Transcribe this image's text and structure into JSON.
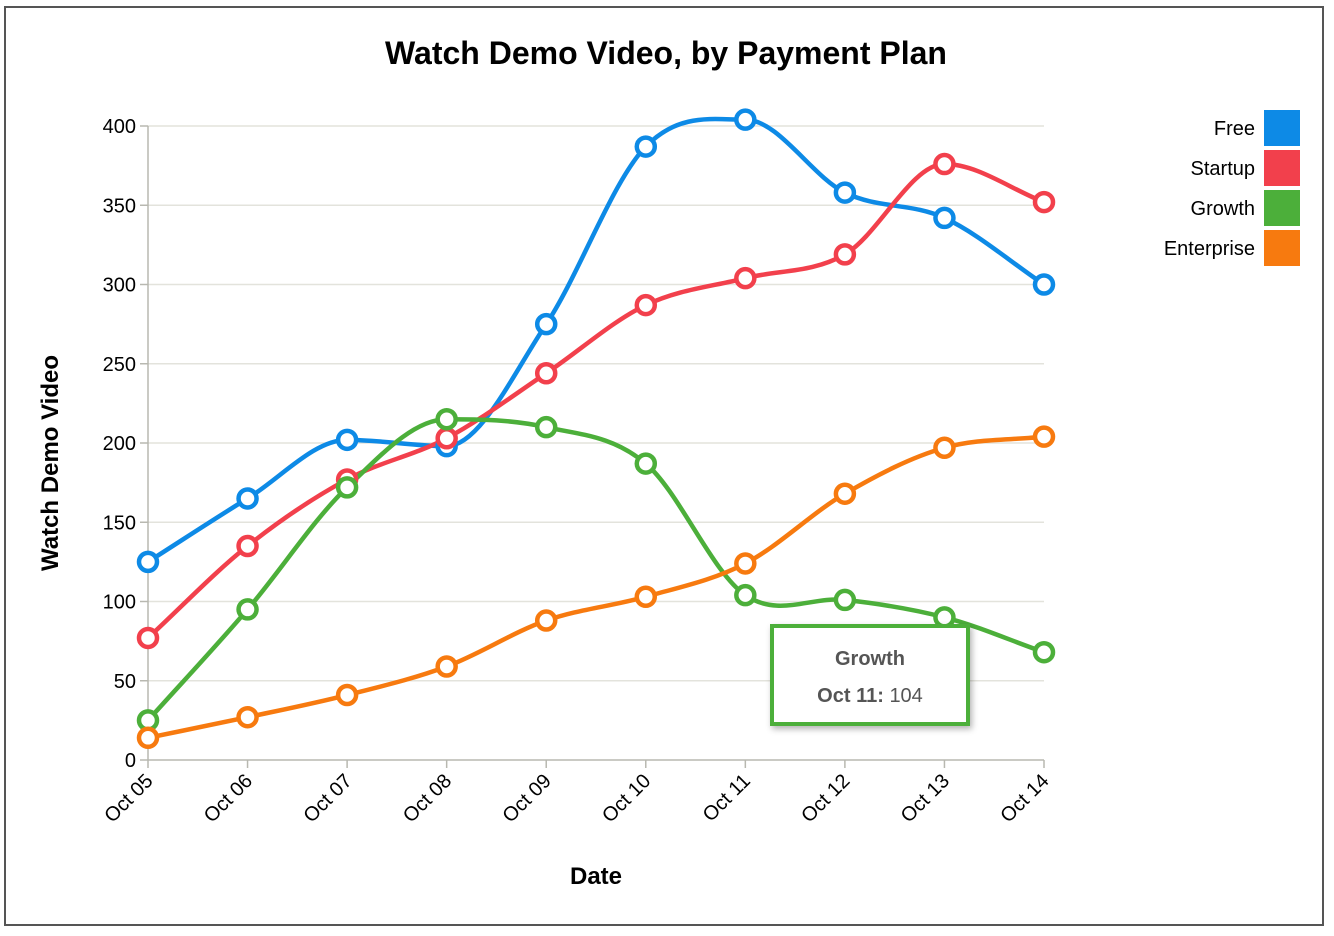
{
  "chart_data": {
    "type": "line",
    "title": "Watch Demo Video, by Payment Plan",
    "xlabel": "Date",
    "ylabel": "Watch Demo Video",
    "categories": [
      "Oct 05",
      "Oct 06",
      "Oct 07",
      "Oct 08",
      "Oct 09",
      "Oct 10",
      "Oct 11",
      "Oct 12",
      "Oct 13",
      "Oct 14"
    ],
    "ylim": [
      0,
      400
    ],
    "yticks": [
      0,
      50,
      100,
      150,
      200,
      250,
      300,
      350,
      400
    ],
    "grid": true,
    "legend_position": "top-right",
    "series": [
      {
        "name": "Free",
        "color": "#0d8ae6",
        "values": [
          125,
          165,
          202,
          198,
          275,
          387,
          404,
          358,
          342,
          300
        ]
      },
      {
        "name": "Startup",
        "color": "#f2404c",
        "values": [
          77,
          135,
          177,
          203,
          244,
          287,
          304,
          319,
          376,
          352
        ]
      },
      {
        "name": "Growth",
        "color": "#4caf3a",
        "values": [
          25,
          95,
          172,
          215,
          210,
          187,
          104,
          101,
          90,
          68
        ]
      },
      {
        "name": "Enterprise",
        "color": "#f77a0f",
        "values": [
          14,
          27,
          41,
          59,
          88,
          103,
          124,
          168,
          197,
          204
        ]
      }
    ],
    "tooltip": {
      "series": "Growth",
      "date": "Oct 11:",
      "value": "104",
      "highlight_color": "#8fe07a"
    }
  }
}
